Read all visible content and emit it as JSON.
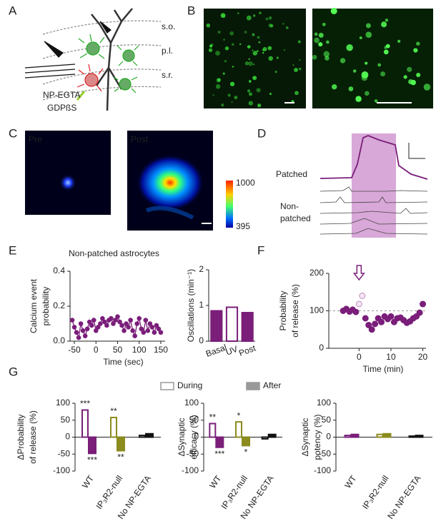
{
  "panel_labels": [
    "A",
    "B",
    "C",
    "D",
    "E",
    "F",
    "G"
  ],
  "panel_a": {
    "layers": [
      "s.o.",
      "p.l.",
      "s.r."
    ],
    "agents": [
      "NP-EGTA",
      "GDPßS"
    ]
  },
  "panel_c": {
    "images": [
      "Pre",
      "Post"
    ],
    "colorbar_ticks": [
      1000,
      395
    ]
  },
  "panel_d": {
    "patched": "Patched",
    "non_patched": [
      "Non-",
      "patched"
    ]
  },
  "chart_data": [
    {
      "type": "line",
      "title": "Non-patched astrocytes",
      "ylabel": [
        "Calcium event",
        "probability"
      ],
      "xlabel": "Time (sec)",
      "x": [
        -55,
        -50,
        -45,
        -40,
        -35,
        -30,
        -25,
        -20,
        -15,
        -10,
        -5,
        0,
        5,
        10,
        15,
        20,
        25,
        30,
        35,
        40,
        45,
        50,
        55,
        60,
        65,
        70,
        75,
        80,
        85,
        90,
        95,
        100,
        105,
        110,
        115,
        120,
        125,
        130,
        135,
        140,
        145,
        150
      ],
      "series": [
        {
          "color": "#7a1e7a",
          "values": [
            0.12,
            0.08,
            0.05,
            0.02,
            0.1,
            0.06,
            0.03,
            0.07,
            0.11,
            0.09,
            0.12,
            0.06,
            0.08,
            0.1,
            0.13,
            0.11,
            0.09,
            0.12,
            0.13,
            0.1,
            0.12,
            0.14,
            0.11,
            0.09,
            0.06,
            0.1,
            0.08,
            0.12,
            0.06,
            0.03,
            0.1,
            0.13,
            0.07,
            0.05,
            0.12,
            0.06,
            0.1,
            0.08,
            0.05,
            0.09,
            0.07,
            0.05
          ]
        }
      ],
      "xlim": [
        -60,
        160
      ],
      "ylim": [
        0,
        0.4
      ],
      "xticks": [
        -50,
        0,
        50,
        100,
        150
      ],
      "yticks": [
        {
          "value": 0,
          "label": "0.0"
        },
        0.2,
        0.4
      ]
    },
    {
      "type": "bar",
      "ylabel": [
        "Oscillations (min⁻¹)"
      ],
      "categories": [
        "Basal",
        "UV",
        "Post"
      ],
      "values": [
        0.85,
        0.95,
        0.8
      ],
      "hollow": [
        false,
        true,
        false
      ],
      "color": "#7a1e7a",
      "ylim": [
        0,
        2
      ],
      "yticks": [
        0,
        1,
        2
      ]
    },
    {
      "type": "scatter",
      "ylabel": [
        "Probability",
        "of release (%)"
      ],
      "xlabel": "Time (min)",
      "x": [
        -5,
        -4,
        -3,
        -2,
        -1,
        0,
        1,
        2,
        3,
        4,
        5,
        6,
        7,
        8,
        9,
        10,
        11,
        12,
        13,
        14,
        15,
        16,
        17,
        18,
        19,
        20
      ],
      "series": [
        {
          "color": "#7a1e7a",
          "values": [
            100,
            105,
            98,
            103,
            97,
            118,
            140,
            80,
            62,
            50,
            65,
            80,
            70,
            85,
            78,
            85,
            70,
            80,
            82,
            75,
            68,
            72,
            80,
            85,
            95,
            118
          ],
          "open": [
            false,
            false,
            false,
            false,
            false,
            true,
            true,
            false,
            false,
            false,
            false,
            false,
            false,
            false,
            false,
            false,
            false,
            false,
            false,
            false,
            false,
            false,
            false,
            false,
            false,
            false
          ]
        }
      ],
      "reference_y": 100,
      "stimulus_x": 0,
      "xlim": [
        -9.5,
        21
      ],
      "ylim": [
        0,
        200
      ],
      "xticks": [
        0,
        10,
        20
      ],
      "yticks": [
        0,
        100,
        200
      ]
    },
    {
      "type": "grouped",
      "ylabel": [
        "ΔProbability",
        "of release (%)"
      ],
      "categories": [
        "WT",
        "IP₃R2-null",
        "No NP-EGTA"
      ],
      "category_colors": [
        "#7a1e7a",
        "#8b8b1e",
        "#111111"
      ],
      "series": [
        {
          "name": "During",
          "color": "#999999",
          "style": "open",
          "values": [
            80,
            58,
            5
          ],
          "significance": [
            "***",
            "**",
            null
          ]
        },
        {
          "name": "After",
          "color": "#999999",
          "style": "filled",
          "values": [
            -48,
            -40,
            10
          ],
          "significance": [
            "***",
            "**",
            null
          ]
        }
      ],
      "ylim": [
        -100,
        100
      ],
      "yticks": [
        -100,
        -50,
        0,
        50,
        100
      ]
    },
    {
      "type": "grouped",
      "ylabel": [
        "ΔSynaptic",
        "efficacy (%)"
      ],
      "categories": [
        "WT",
        "IP₃R2-null",
        "No NP-EGTA"
      ],
      "category_colors": [
        "#7a1e7a",
        "#8b8b1e",
        "#111111"
      ],
      "series": [
        {
          "style": "open",
          "values": [
            40,
            45,
            -5
          ],
          "significance": [
            "**",
            "*",
            null
          ]
        },
        {
          "style": "filled",
          "values": [
            -30,
            -25,
            8
          ],
          "significance": [
            "***",
            "*",
            null
          ]
        }
      ],
      "ylim": [
        -100,
        100
      ],
      "yticks": [
        -100,
        -50,
        0,
        50,
        100
      ]
    },
    {
      "type": "grouped",
      "ylabel": [
        "ΔSynaptic",
        "potency (%)"
      ],
      "categories": [
        "WT",
        "IP₃R2-null",
        "No NP-EGTA"
      ],
      "category_colors": [
        "#7a1e7a",
        "#8b8b1e",
        "#111111"
      ],
      "series": [
        {
          "style": "open",
          "values": [
            5,
            8,
            3
          ]
        },
        {
          "style": "filled",
          "values": [
            8,
            10,
            5
          ]
        }
      ],
      "ylim": [
        -100,
        100
      ],
      "yticks": [
        -100,
        -50,
        0,
        50,
        100
      ]
    }
  ]
}
